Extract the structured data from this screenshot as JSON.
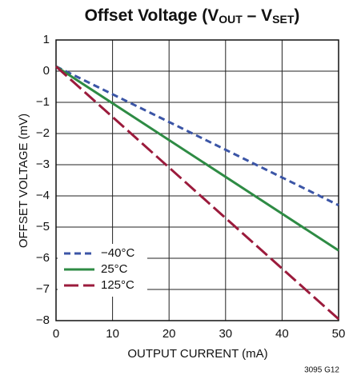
{
  "chart_data": {
    "type": "line",
    "title": [
      "Offset Voltage (V",
      "OUT",
      " – V",
      "SET",
      ")"
    ],
    "x_label": "OUTPUT CURRENT (mA)",
    "y_label": "OFFSET VOLTAGE (mV)",
    "footnote": "3095 G12",
    "x": [
      0,
      50
    ],
    "series": [
      {
        "name": "−40°C",
        "color": "#3b55a6",
        "dash": "8,5",
        "values": [
          0.15,
          -4.3
        ]
      },
      {
        "name": "25°C",
        "color": "#2e8b44",
        "dash": "none",
        "values": [
          0.15,
          -5.75
        ]
      },
      {
        "name": "125°C",
        "color": "#9b1b3c",
        "dash": "18,6",
        "values": [
          0.15,
          -7.95
        ]
      }
    ],
    "xlim": [
      0,
      50
    ],
    "xticks": [
      0,
      10,
      20,
      30,
      40,
      50
    ],
    "ylim": [
      -8,
      1
    ],
    "yticks": [
      {
        "value": 1,
        "label": "1"
      },
      {
        "value": 0,
        "label": "0"
      },
      {
        "value": -1,
        "label": "−1"
      },
      {
        "value": -2,
        "label": "−2"
      },
      {
        "value": -3,
        "label": "−3"
      },
      {
        "value": -4,
        "label": "−4"
      },
      {
        "value": -5,
        "label": "−5"
      },
      {
        "value": -6,
        "label": "−6"
      },
      {
        "value": -7,
        "label": "−7"
      },
      {
        "value": -8,
        "label": "−8"
      }
    ],
    "grid": true,
    "legend": "lower left"
  }
}
